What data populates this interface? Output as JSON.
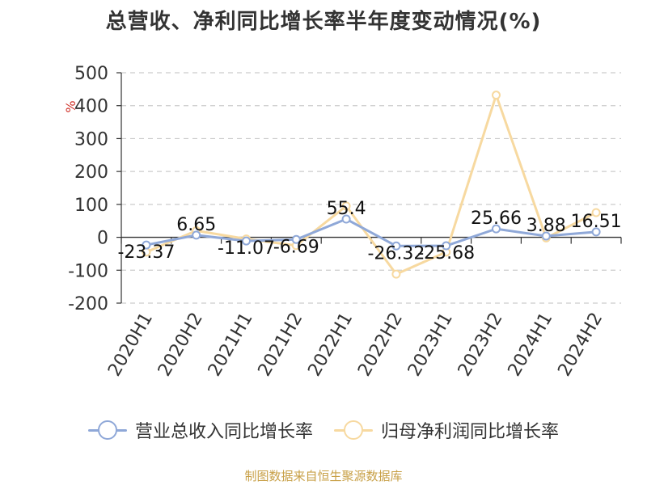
{
  "chart_data": {
    "type": "line",
    "title": "总营收、净利同比增长率半年度变动情况(%)",
    "ylabel": "%",
    "xlabel": "",
    "categories": [
      "2020H1",
      "2020H2",
      "2021H1",
      "2021H2",
      "2022H1",
      "2022H2",
      "2023H1",
      "2023H2",
      "2024H1",
      "2024H2"
    ],
    "ylim": [
      -200,
      500
    ],
    "yticks": [
      500,
      400,
      300,
      200,
      100,
      0,
      -100,
      -200
    ],
    "grid": true,
    "legend_position": "bottom",
    "series": [
      {
        "name": "营业总收入同比增长率",
        "color": "#8fa8d8",
        "values": [
          -23.37,
          6.65,
          -11.07,
          -6.69,
          55.4,
          -26.32,
          -25.68,
          25.66,
          3.88,
          16.51
        ],
        "labels": [
          "-23.37",
          "6.65",
          "-11.07",
          "-6.69",
          "55.4",
          "-26.32",
          "-25.68",
          "25.66",
          "3.88",
          "16.51"
        ]
      },
      {
        "name": "归母净利润同比增长率",
        "color": "#f7d9a0",
        "values": [
          -45,
          20,
          -5,
          -25,
          95,
          -112,
          -45,
          432,
          -2,
          75
        ]
      }
    ]
  },
  "source_note": "制图数据来自恒生聚源数据库"
}
